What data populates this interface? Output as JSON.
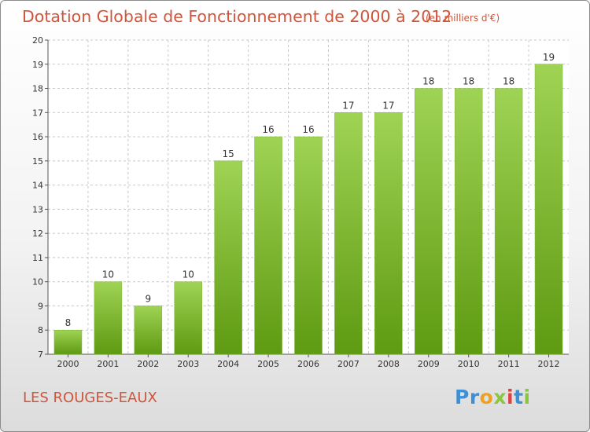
{
  "header": {
    "title": "Dotation Globale de Fonctionnement de 2000 à 2012",
    "unit": "(en milliers d'€)"
  },
  "footer": {
    "commune": "LES ROUGES-EAUX",
    "logo_text": "Proxiti"
  },
  "colors": {
    "title": "#d0553a",
    "bar_top": "#9fd354",
    "bar_bottom": "#5e9a12",
    "grid": "#c8c8c8"
  },
  "chart_data": {
    "type": "bar",
    "title": "Dotation Globale de Fonctionnement de 2000 à 2012",
    "subtitle": "(en milliers d'€)",
    "categories": [
      "2000",
      "2001",
      "2002",
      "2003",
      "2004",
      "2005",
      "2006",
      "2007",
      "2008",
      "2009",
      "2010",
      "2011",
      "2012"
    ],
    "values": [
      8,
      10,
      9,
      10,
      15,
      16,
      16,
      17,
      17,
      18,
      18,
      18,
      19
    ],
    "ylim": [
      7,
      20
    ],
    "yticks": [
      7,
      8,
      9,
      10,
      11,
      12,
      13,
      14,
      15,
      16,
      17,
      18,
      19,
      20
    ],
    "grid": true,
    "legend": "none"
  }
}
